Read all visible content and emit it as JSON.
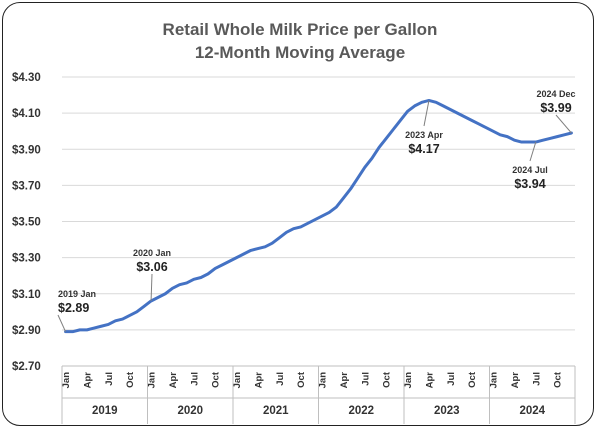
{
  "chart_data": {
    "type": "line",
    "title": "Retail Whole Milk Price per Gallon",
    "subtitle": "12-Month Moving Average",
    "xlabel": "",
    "ylabel": "",
    "ylim": [
      2.7,
      4.3
    ],
    "yticks": [
      "$4.30",
      "$4.10",
      "$3.90",
      "$3.70",
      "$3.50",
      "$3.30",
      "$3.10",
      "$2.90",
      "$2.70"
    ],
    "grid": true,
    "legend": "none",
    "month_ticks": [
      "Jan",
      "Apr",
      "Jul",
      "Oct"
    ],
    "years": [
      "2019",
      "2020",
      "2021",
      "2022",
      "2023",
      "2024"
    ],
    "line_color": "#4472c4",
    "series": [
      {
        "x": [
          "2019-01",
          "2019-02",
          "2019-03",
          "2019-04",
          "2019-05",
          "2019-06",
          "2019-07",
          "2019-08",
          "2019-09",
          "2019-10",
          "2019-11",
          "2019-12",
          "2020-01",
          "2020-02",
          "2020-03",
          "2020-04",
          "2020-05",
          "2020-06",
          "2020-07",
          "2020-08",
          "2020-09",
          "2020-10",
          "2020-11",
          "2020-12",
          "2021-01",
          "2021-02",
          "2021-03",
          "2021-04",
          "2021-05",
          "2021-06",
          "2021-07",
          "2021-08",
          "2021-09",
          "2021-10",
          "2021-11",
          "2021-12",
          "2022-01",
          "2022-02",
          "2022-03",
          "2022-04",
          "2022-05",
          "2022-06",
          "2022-07",
          "2022-08",
          "2022-09",
          "2022-10",
          "2022-11",
          "2022-12",
          "2023-01",
          "2023-02",
          "2023-03",
          "2023-04",
          "2023-05",
          "2023-06",
          "2023-07",
          "2023-08",
          "2023-09",
          "2023-10",
          "2023-11",
          "2023-12",
          "2024-01",
          "2024-02",
          "2024-03",
          "2024-04",
          "2024-05",
          "2024-06",
          "2024-07",
          "2024-08",
          "2024-09",
          "2024-10",
          "2024-11",
          "2024-12"
        ],
        "values": [
          2.89,
          2.89,
          2.9,
          2.9,
          2.91,
          2.92,
          2.93,
          2.95,
          2.96,
          2.98,
          3.0,
          3.03,
          3.06,
          3.08,
          3.1,
          3.13,
          3.15,
          3.16,
          3.18,
          3.19,
          3.21,
          3.24,
          3.26,
          3.28,
          3.3,
          3.32,
          3.34,
          3.35,
          3.36,
          3.38,
          3.41,
          3.44,
          3.46,
          3.47,
          3.49,
          3.51,
          3.53,
          3.55,
          3.58,
          3.63,
          3.68,
          3.74,
          3.8,
          3.85,
          3.91,
          3.96,
          4.01,
          4.06,
          4.11,
          4.14,
          4.16,
          4.17,
          4.16,
          4.14,
          4.12,
          4.1,
          4.08,
          4.06,
          4.04,
          4.02,
          4.0,
          3.98,
          3.97,
          3.95,
          3.94,
          3.94,
          3.94,
          3.95,
          3.96,
          3.97,
          3.98,
          3.99
        ]
      }
    ],
    "annotations": [
      {
        "date": "2019 Jan",
        "value": "$2.89",
        "index": 0
      },
      {
        "date": "2020 Jan",
        "value": "$3.06",
        "index": 12
      },
      {
        "date": "2023 Apr",
        "value": "$4.17",
        "index": 51
      },
      {
        "date": "2024 Jul",
        "value": "$3.94",
        "index": 66
      },
      {
        "date": "2024 Dec",
        "value": "$3.99",
        "index": 71
      }
    ]
  }
}
